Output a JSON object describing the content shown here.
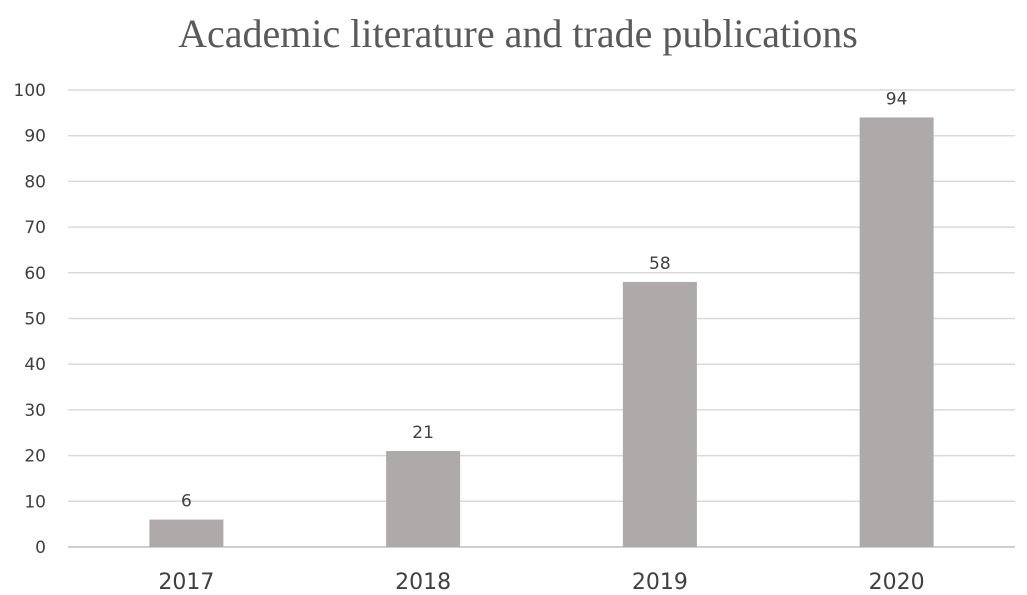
{
  "chart_data": {
    "type": "bar",
    "title": "Academic literature and trade publications",
    "categories": [
      "2017",
      "2018",
      "2019",
      "2020"
    ],
    "values": [
      6,
      21,
      58,
      94
    ],
    "data_labels": [
      "6",
      "21",
      "58",
      "94"
    ],
    "ylim": [
      0,
      100
    ],
    "yticks": [
      0,
      10,
      20,
      30,
      40,
      50,
      60,
      70,
      80,
      90,
      100
    ],
    "ytick_labels": [
      "0",
      "10",
      "20",
      "30",
      "40",
      "50",
      "60",
      "70",
      "80",
      "90",
      "100"
    ],
    "xlabel": "",
    "ylabel": "",
    "grid": true,
    "legend": "none",
    "bar_color": "#aeaaaa"
  }
}
